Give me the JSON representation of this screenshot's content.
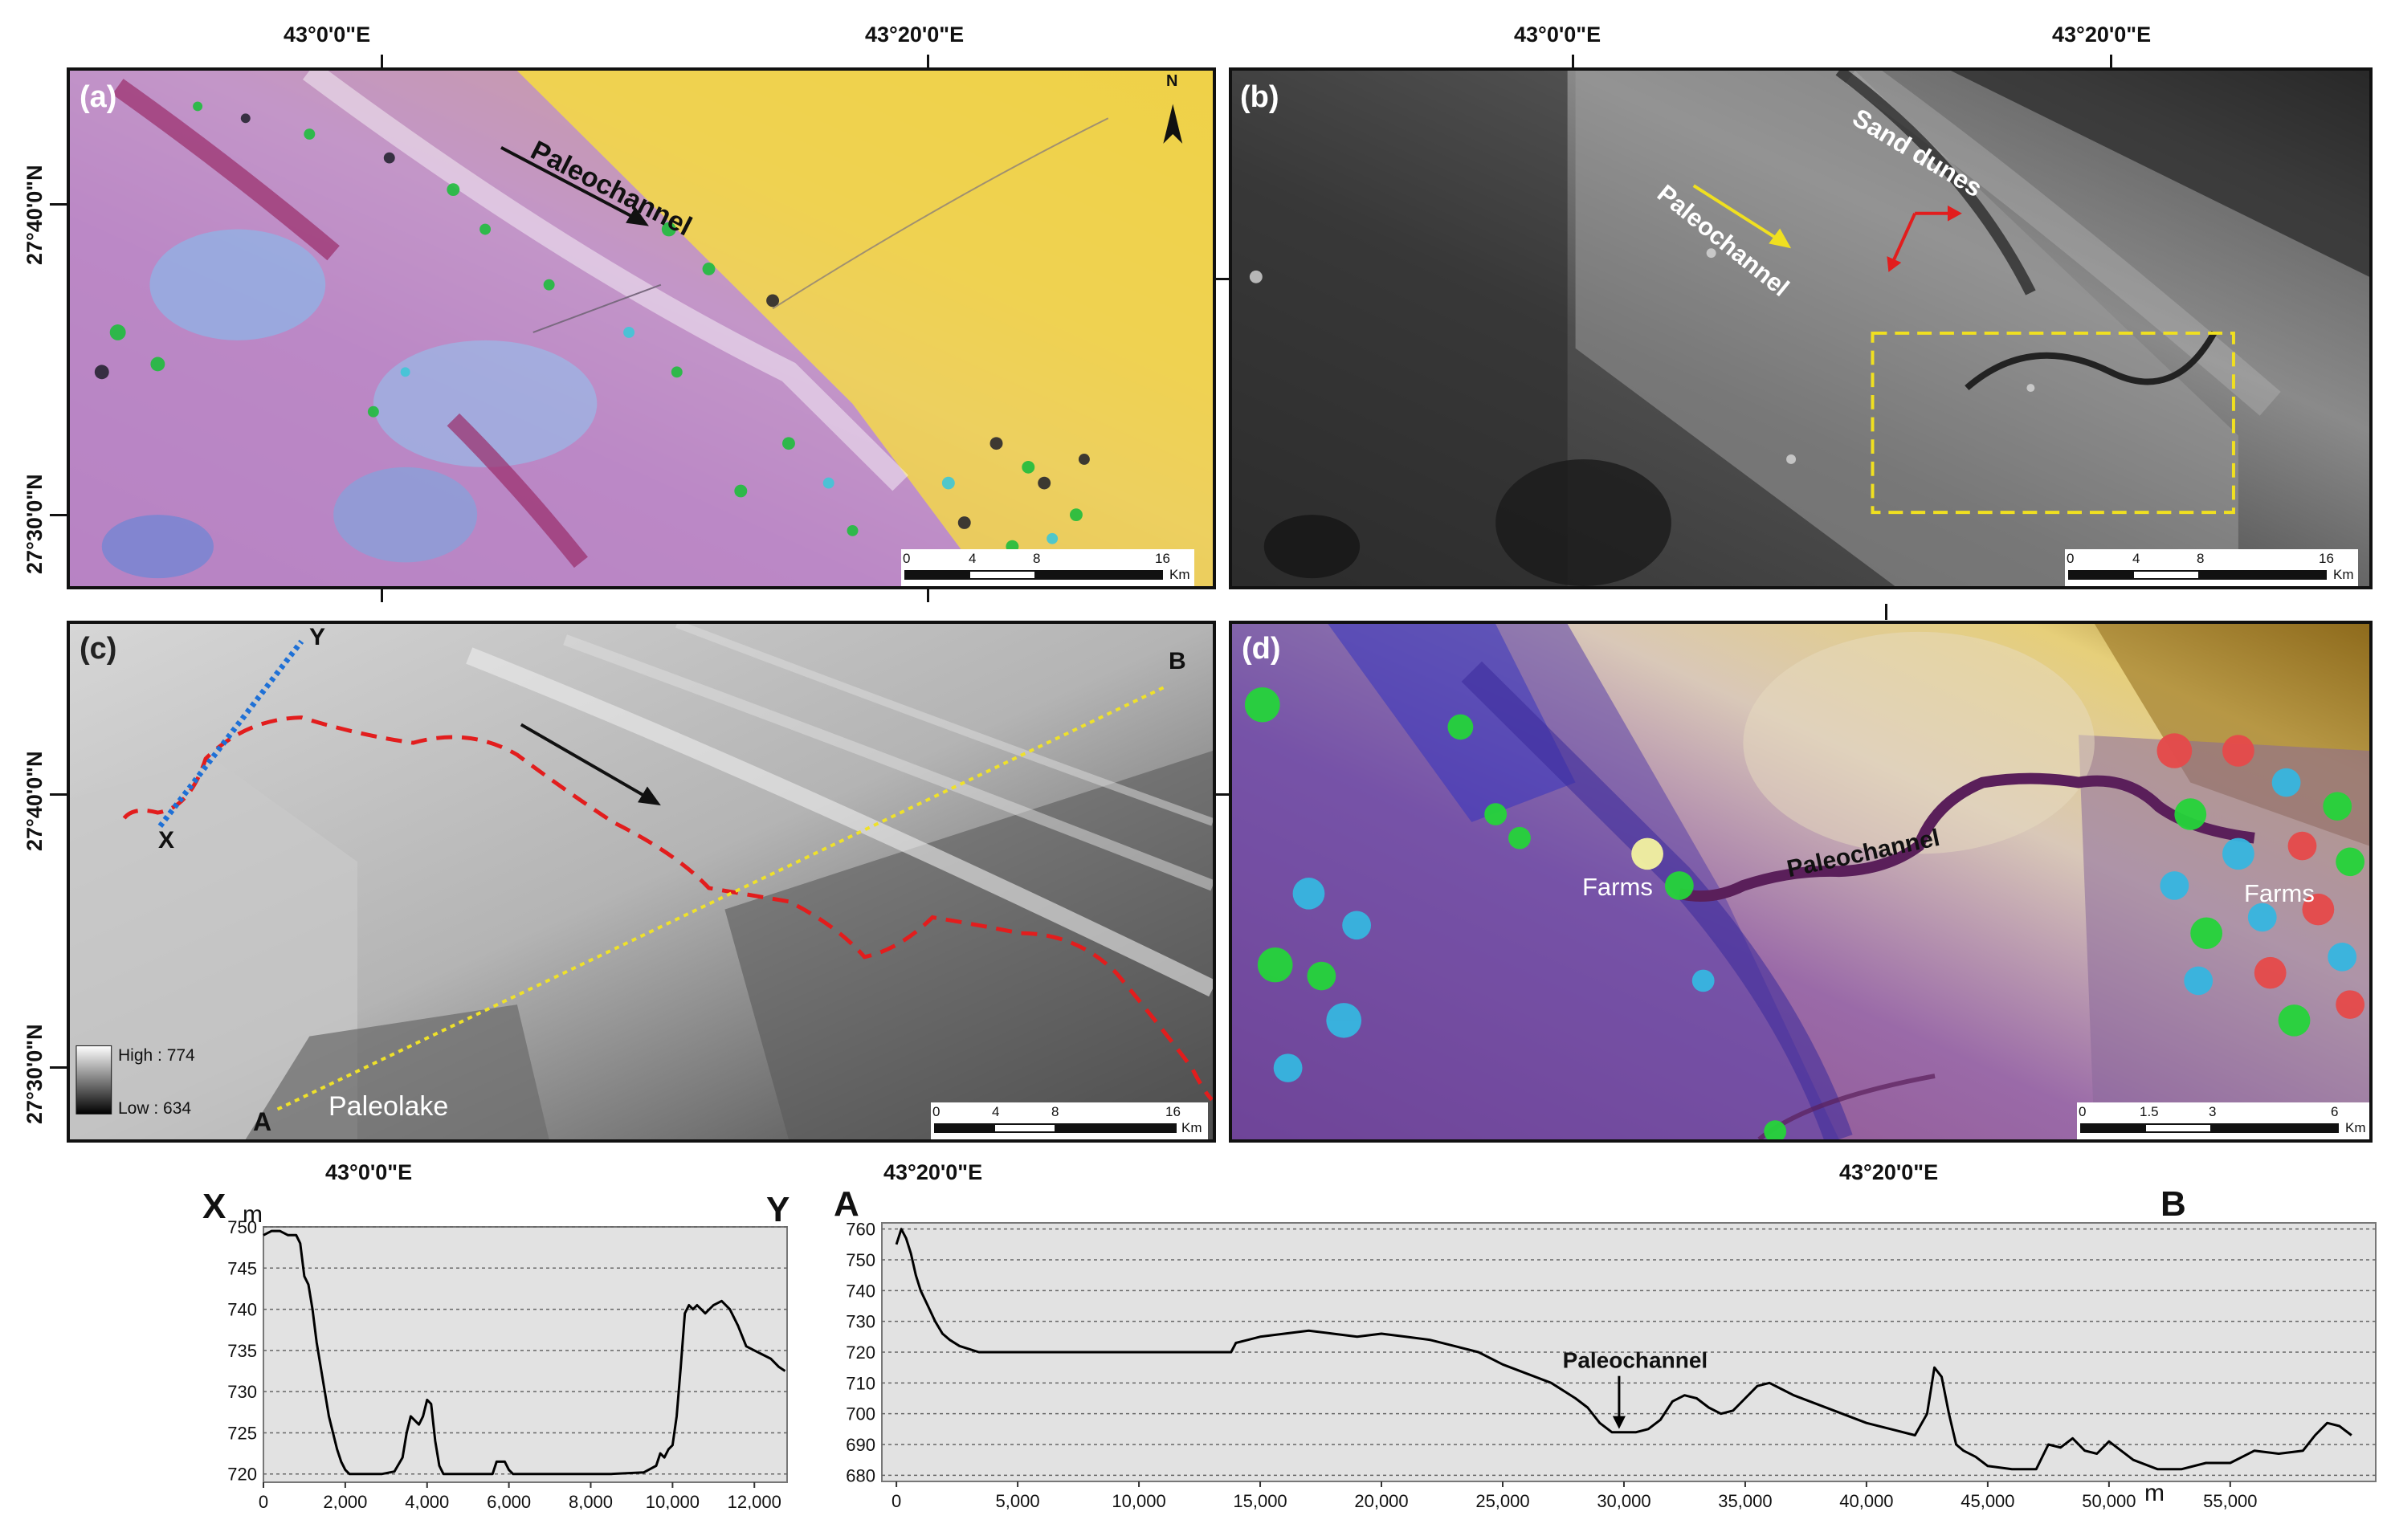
{
  "coords": {
    "top_lon_left": "43°0'0\"E",
    "top_lon_right": "43°20'0\"E",
    "top_lon_left_b": "43°0'0\"E",
    "top_lon_right_b": "43°20'0\"E",
    "lat_a_top": "27°40'0\"N",
    "lat_a_bottom": "27°30'0\"N",
    "lat_c_top": "27°40'0\"N",
    "lat_c_bottom": "27°30'0\"N",
    "bottom_lon_c_left": "43°0'0\"E",
    "bottom_lon_c_right": "43°20'0\"E",
    "bottom_lon_d": "43°20'0\"E"
  },
  "panel_a": {
    "label": "(a)",
    "north": "N",
    "paleochannel": "Paleochannel",
    "scale": {
      "ticks": [
        "0",
        "4",
        "8",
        "16"
      ],
      "unit": "Km"
    }
  },
  "panel_b": {
    "label": "(b)",
    "paleochannel": "Paleochannel",
    "sand_dunes": "Sand dunes",
    "scale": {
      "ticks": [
        "0",
        "4",
        "8",
        "16"
      ],
      "unit": "Km"
    }
  },
  "panel_c": {
    "label": "(c)",
    "point_a": "A",
    "point_b": "B",
    "point_x": "X",
    "point_y": "Y",
    "paleolake": "Paleolake",
    "legend_high": "High : 774",
    "legend_low": "Low : 634",
    "scale": {
      "ticks": [
        "0",
        "4",
        "8",
        "16"
      ],
      "unit": "Km"
    }
  },
  "panel_d": {
    "label": "(d)",
    "paleochannel": "Paleochannel",
    "farms_left": "Farms",
    "farms_right": "Farms",
    "scale": {
      "ticks": [
        "0",
        "1.5",
        "3",
        "6"
      ],
      "unit": "Km"
    }
  },
  "chart_data": [
    {
      "type": "line",
      "start_label": "X",
      "end_label": "Y",
      "ylabel": "m",
      "xlim": [
        0,
        12800
      ],
      "ylim": [
        719,
        750
      ],
      "xticks": [
        0,
        2000,
        4000,
        6000,
        8000,
        10000,
        12000
      ],
      "xtick_labels": [
        "0",
        "2,000",
        "4,000",
        "6,000",
        "8,000",
        "10,000",
        "12,000"
      ],
      "yticks": [
        720,
        725,
        730,
        735,
        740,
        745,
        750
      ],
      "ytick_labels": [
        "720",
        "725",
        "730",
        "735",
        "740",
        "745",
        "750"
      ],
      "grid": true,
      "x": [
        0,
        200,
        400,
        600,
        800,
        900,
        1000,
        1100,
        1200,
        1300,
        1400,
        1500,
        1600,
        1700,
        1800,
        1900,
        2000,
        2100,
        2300,
        2600,
        2900,
        3200,
        3400,
        3500,
        3600,
        3700,
        3800,
        3900,
        4000,
        4100,
        4200,
        4300,
        4400,
        4600,
        5000,
        5600,
        5700,
        5800,
        5900,
        6000,
        6100,
        6500,
        7500,
        8500,
        9300,
        9600,
        9700,
        9800,
        9900,
        10000,
        10100,
        10200,
        10300,
        10400,
        10500,
        10600,
        10700,
        10800,
        11000,
        11200,
        11400,
        11600,
        11800,
        12000,
        12200,
        12400,
        12600,
        12750
      ],
      "y": [
        749,
        749.5,
        749.5,
        749,
        749,
        748,
        744,
        743,
        740,
        736,
        733,
        730,
        727,
        725,
        723,
        721.5,
        720.5,
        720,
        720,
        720,
        720,
        720.3,
        722,
        725,
        727,
        726.5,
        726,
        727,
        729,
        728.5,
        724,
        721,
        720,
        720,
        720,
        720,
        721.5,
        721.5,
        721.5,
        720.5,
        720,
        720,
        720,
        720,
        720.2,
        721,
        722.5,
        722,
        723,
        723.5,
        727,
        733,
        739.5,
        740.5,
        740,
        740.5,
        740,
        739.5,
        740.5,
        741,
        740,
        738,
        735.5,
        735,
        734.5,
        734,
        733,
        732.5
      ]
    },
    {
      "type": "line",
      "start_label": "A",
      "end_label": "B",
      "xlabel": "m",
      "annotation": "Paleochannel",
      "annotation_x": 29800,
      "xlim": [
        -600,
        61000
      ],
      "ylim": [
        678,
        762
      ],
      "xticks": [
        0,
        5000,
        10000,
        15000,
        20000,
        25000,
        30000,
        35000,
        40000,
        45000,
        50000,
        55000
      ],
      "xtick_labels": [
        "0",
        "5,000",
        "10,000",
        "15,000",
        "20,000",
        "25,000",
        "30,000",
        "35,000",
        "40,000",
        "45,000",
        "50,000",
        "55,000"
      ],
      "yticks": [
        680,
        690,
        700,
        710,
        720,
        730,
        740,
        750,
        760
      ],
      "ytick_labels": [
        "680",
        "690",
        "700",
        "710",
        "720",
        "730",
        "740",
        "750",
        "760"
      ],
      "grid": true,
      "x": [
        0,
        200,
        400,
        600,
        800,
        1000,
        1300,
        1600,
        1900,
        2200,
        2600,
        3000,
        3400,
        4000,
        6000,
        9000,
        12000,
        13800,
        14000,
        14500,
        15000,
        16000,
        17000,
        18000,
        19000,
        20000,
        21000,
        22000,
        23000,
        24000,
        25000,
        26000,
        27000,
        28000,
        28500,
        29000,
        29500,
        30000,
        30500,
        31000,
        31500,
        32000,
        32500,
        33000,
        33500,
        34000,
        34500,
        35000,
        35500,
        36000,
        36500,
        37000,
        38000,
        39000,
        40000,
        41000,
        42000,
        42500,
        42800,
        43100,
        43400,
        43700,
        44000,
        44500,
        45000,
        46000,
        47000,
        47500,
        48000,
        48500,
        49000,
        49500,
        50000,
        51000,
        52000,
        53000,
        54000,
        55000,
        56000,
        57000,
        58000,
        58500,
        59000,
        59500,
        60000
      ],
      "y": [
        755,
        760,
        757,
        752,
        745,
        740,
        735,
        730,
        726,
        724,
        722,
        721,
        720,
        720,
        720,
        720,
        720,
        720,
        723,
        724,
        725,
        726,
        727,
        726,
        725,
        726,
        725,
        724,
        722,
        720,
        716,
        713,
        710,
        705,
        702,
        697,
        694,
        694,
        694,
        695,
        698,
        704,
        706,
        705,
        702,
        700,
        701,
        705,
        709,
        710,
        708,
        706,
        703,
        700,
        697,
        695,
        693,
        700,
        715,
        712,
        700,
        690,
        688,
        686,
        683,
        682,
        682,
        690,
        689,
        692,
        688,
        687,
        691,
        685,
        682,
        682,
        684,
        684,
        688,
        687,
        688,
        693,
        697,
        696,
        693
      ]
    }
  ]
}
